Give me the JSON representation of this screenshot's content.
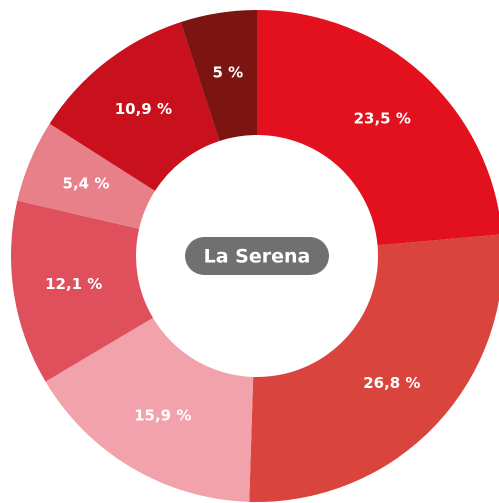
{
  "chart_data": {
    "type": "donut",
    "center_label": "La Serena",
    "categories": [
      null,
      null,
      null,
      null,
      null,
      null,
      null
    ],
    "values": [
      23.5,
      26.8,
      15.9,
      12.1,
      5.4,
      10.9,
      5
    ],
    "value_labels": [
      "23,5 %",
      "26,8 %",
      "15,9 %",
      "12,1 %",
      "5,4 %",
      "10,9 %",
      "5 %"
    ],
    "colors": [
      "#e3101e",
      "#d9443c",
      "#f1a2aa",
      "#e0505c",
      "#e8808a",
      "#c8111c",
      "#7c1412"
    ]
  }
}
